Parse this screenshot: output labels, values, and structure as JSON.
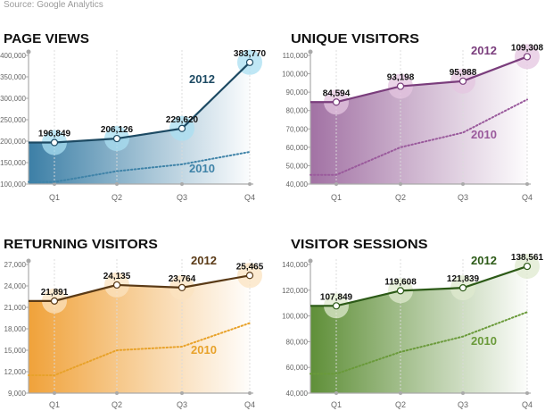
{
  "source": "Source: Google Analytics",
  "chart_data": [
    {
      "type": "line",
      "title": "PAGE VIEWS",
      "categories": [
        "Q1",
        "Q2",
        "Q3",
        "Q4"
      ],
      "ylim": [
        100000,
        400000
      ],
      "yticks": [
        "100,000",
        "150,000",
        "200,000",
        "250,000",
        "300,000",
        "350,000",
        "400,000"
      ],
      "ytick_values": [
        100000,
        150000,
        200000,
        250000,
        300000,
        350000,
        400000
      ],
      "series": [
        {
          "name": "2012",
          "values": [
            196849,
            206126,
            229620,
            383770
          ],
          "labels": [
            "196,849",
            "206,126",
            "229,620",
            "383,770"
          ],
          "style": "solid"
        },
        {
          "name": "2010",
          "values": [
            105000,
            130000,
            146000,
            175000
          ],
          "style": "dotted"
        }
      ],
      "colors": {
        "line2012": "#1d4a63",
        "line2010": "#3f83a8",
        "fill": "#3c7fa6",
        "bubble": "#a9dff2",
        "label2012": "#1d4a63",
        "label2010": "#3f83a8"
      }
    },
    {
      "type": "line",
      "title": "UNIQUE VISITORS",
      "categories": [
        "Q1",
        "Q2",
        "Q3",
        "Q4"
      ],
      "ylim": [
        40000,
        110000
      ],
      "yticks": [
        "40,000",
        "50,000",
        "60,000",
        "70,000",
        "80,000",
        "90,000",
        "100,000",
        "110,000"
      ],
      "ytick_values": [
        40000,
        50000,
        60000,
        70000,
        80000,
        90000,
        100000,
        110000
      ],
      "series": [
        {
          "name": "2012",
          "values": [
            84594,
            93198,
            95988,
            109308
          ],
          "labels": [
            "84,594",
            "93,198",
            "95,988",
            "109,308"
          ],
          "style": "solid"
        },
        {
          "name": "2010",
          "values": [
            45000,
            60000,
            68000,
            86000
          ],
          "style": "dotted"
        }
      ],
      "colors": {
        "line2012": "#7a3d7c",
        "line2010": "#9a5a9c",
        "fill": "#a272a4",
        "bubble": "#e4c6e0",
        "label2012": "#7a3d7c",
        "label2010": "#9a5a9c"
      }
    },
    {
      "type": "line",
      "title": "RETURNING VISITORS",
      "categories": [
        "Q1",
        "Q2",
        "Q3",
        "Q4"
      ],
      "ylim": [
        9000,
        27000
      ],
      "yticks": [
        "9,000",
        "12,000",
        "15,000",
        "18,000",
        "21,000",
        "24,000",
        "27,000"
      ],
      "ytick_values": [
        9000,
        12000,
        15000,
        18000,
        21000,
        24000,
        27000
      ],
      "series": [
        {
          "name": "2012",
          "values": [
            21891,
            24135,
            23764,
            25465
          ],
          "labels": [
            "21,891",
            "24,135",
            "23,764",
            "25,465"
          ],
          "style": "solid"
        },
        {
          "name": "2010",
          "values": [
            11500,
            15000,
            15500,
            18800
          ],
          "style": "dotted"
        }
      ],
      "colors": {
        "line2012": "#5a3a16",
        "line2010": "#e8a22a",
        "fill": "#f0a23a",
        "bubble": "#fbe3c0",
        "label2012": "#5a3a16",
        "label2010": "#e8a22a"
      }
    },
    {
      "type": "line",
      "title": "VISITOR SESSIONS",
      "categories": [
        "Q1",
        "Q2",
        "Q3",
        "Q4"
      ],
      "ylim": [
        40000,
        140000
      ],
      "yticks": [
        "40,000",
        "60,000",
        "80,000",
        "100,000",
        "120,000",
        "140,000"
      ],
      "ytick_values": [
        40000,
        60000,
        80000,
        100000,
        120000,
        140000
      ],
      "series": [
        {
          "name": "2012",
          "values": [
            107849,
            119608,
            121839,
            138561
          ],
          "labels": [
            "107,849",
            "119,608",
            "121,839",
            "138,561"
          ],
          "style": "solid"
        },
        {
          "name": "2010",
          "values": [
            55000,
            72000,
            84000,
            103000
          ],
          "style": "dotted"
        }
      ],
      "colors": {
        "line2012": "#2c5a17",
        "line2010": "#6a9a3a",
        "fill": "#5f8f38",
        "bubble": "#dfe9cf",
        "label2012": "#2c5a17",
        "label2010": "#6a9a3a"
      }
    }
  ]
}
